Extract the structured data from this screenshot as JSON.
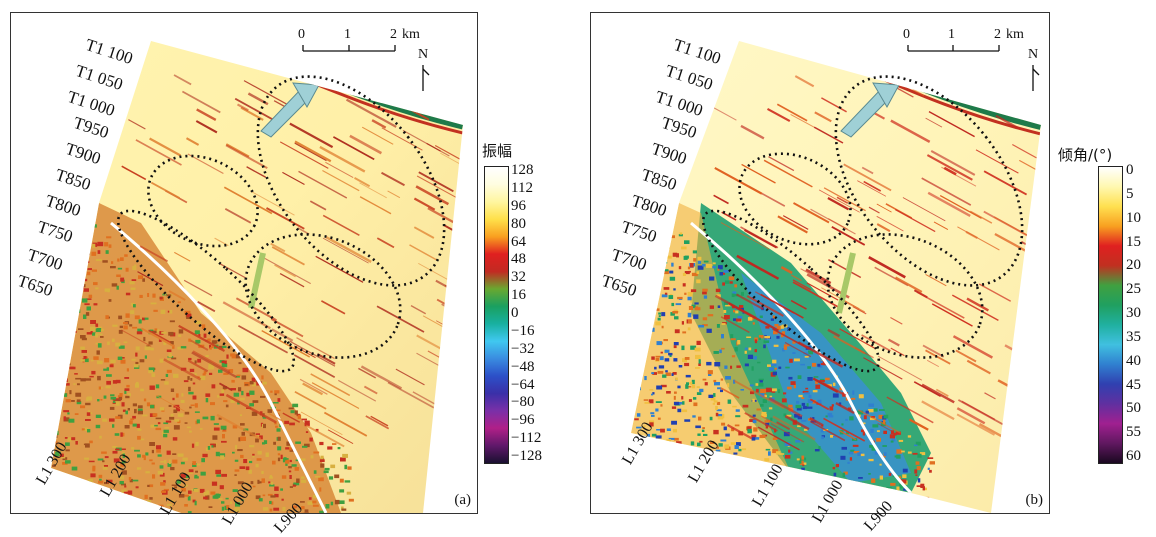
{
  "panels": [
    {
      "tag": "(a)",
      "t_labels": [
        "T1 100",
        "T1 050",
        "T1 000",
        "T950",
        "T900",
        "T850",
        "T800",
        "T750",
        "T700",
        "T650"
      ],
      "l_labels": [
        "L1 300",
        "L1 200",
        "L1 100",
        "L1 000",
        "L900"
      ],
      "scale": {
        "ticks": [
          "0",
          "1",
          "2"
        ],
        "unit": "km"
      },
      "north": "N",
      "colorbar": {
        "title": "振幅",
        "ticks": [
          "128",
          "112",
          "96",
          "80",
          "64",
          "48",
          "32",
          "16",
          "0",
          "−16",
          "−32",
          "−48",
          "−64",
          "−80",
          "−96",
          "−112",
          "−128"
        ],
        "colors": [
          "#ffffff",
          "#fffde0",
          "#fff6a0",
          "#ffe04a",
          "#f9a020",
          "#e02020",
          "#c22a22",
          "#6aa830",
          "#1aa060",
          "#18b0a0",
          "#40c8f0",
          "#3a8ce0",
          "#2c50c8",
          "#3a30a8",
          "#7a30a8",
          "#b02088",
          "#60186a",
          "#1a1030"
        ]
      }
    },
    {
      "tag": "(b)",
      "t_labels": [
        "T1 100",
        "T1 050",
        "T1 000",
        "T950",
        "T900",
        "T850",
        "T800",
        "T750",
        "T700",
        "T650"
      ],
      "l_labels": [
        "L1 300",
        "L1 200",
        "L1 100",
        "L1 000",
        "L900"
      ],
      "scale": {
        "ticks": [
          "0",
          "1",
          "2"
        ],
        "unit": "km"
      },
      "north": "N",
      "colorbar": {
        "title": "倾角/(°)",
        "ticks": [
          "0",
          "5",
          "10",
          "15",
          "20",
          "25",
          "30",
          "35",
          "40",
          "45",
          "50",
          "55",
          "60"
        ],
        "colors": [
          "#ffffff",
          "#fff8b0",
          "#ffe050",
          "#f8a020",
          "#e02020",
          "#c03020",
          "#40a040",
          "#20a060",
          "#20b0a0",
          "#40c0e0",
          "#3080d0",
          "#3040b0",
          "#6030a0",
          "#a02090",
          "#601860",
          "#1a0820"
        ]
      }
    }
  ]
}
